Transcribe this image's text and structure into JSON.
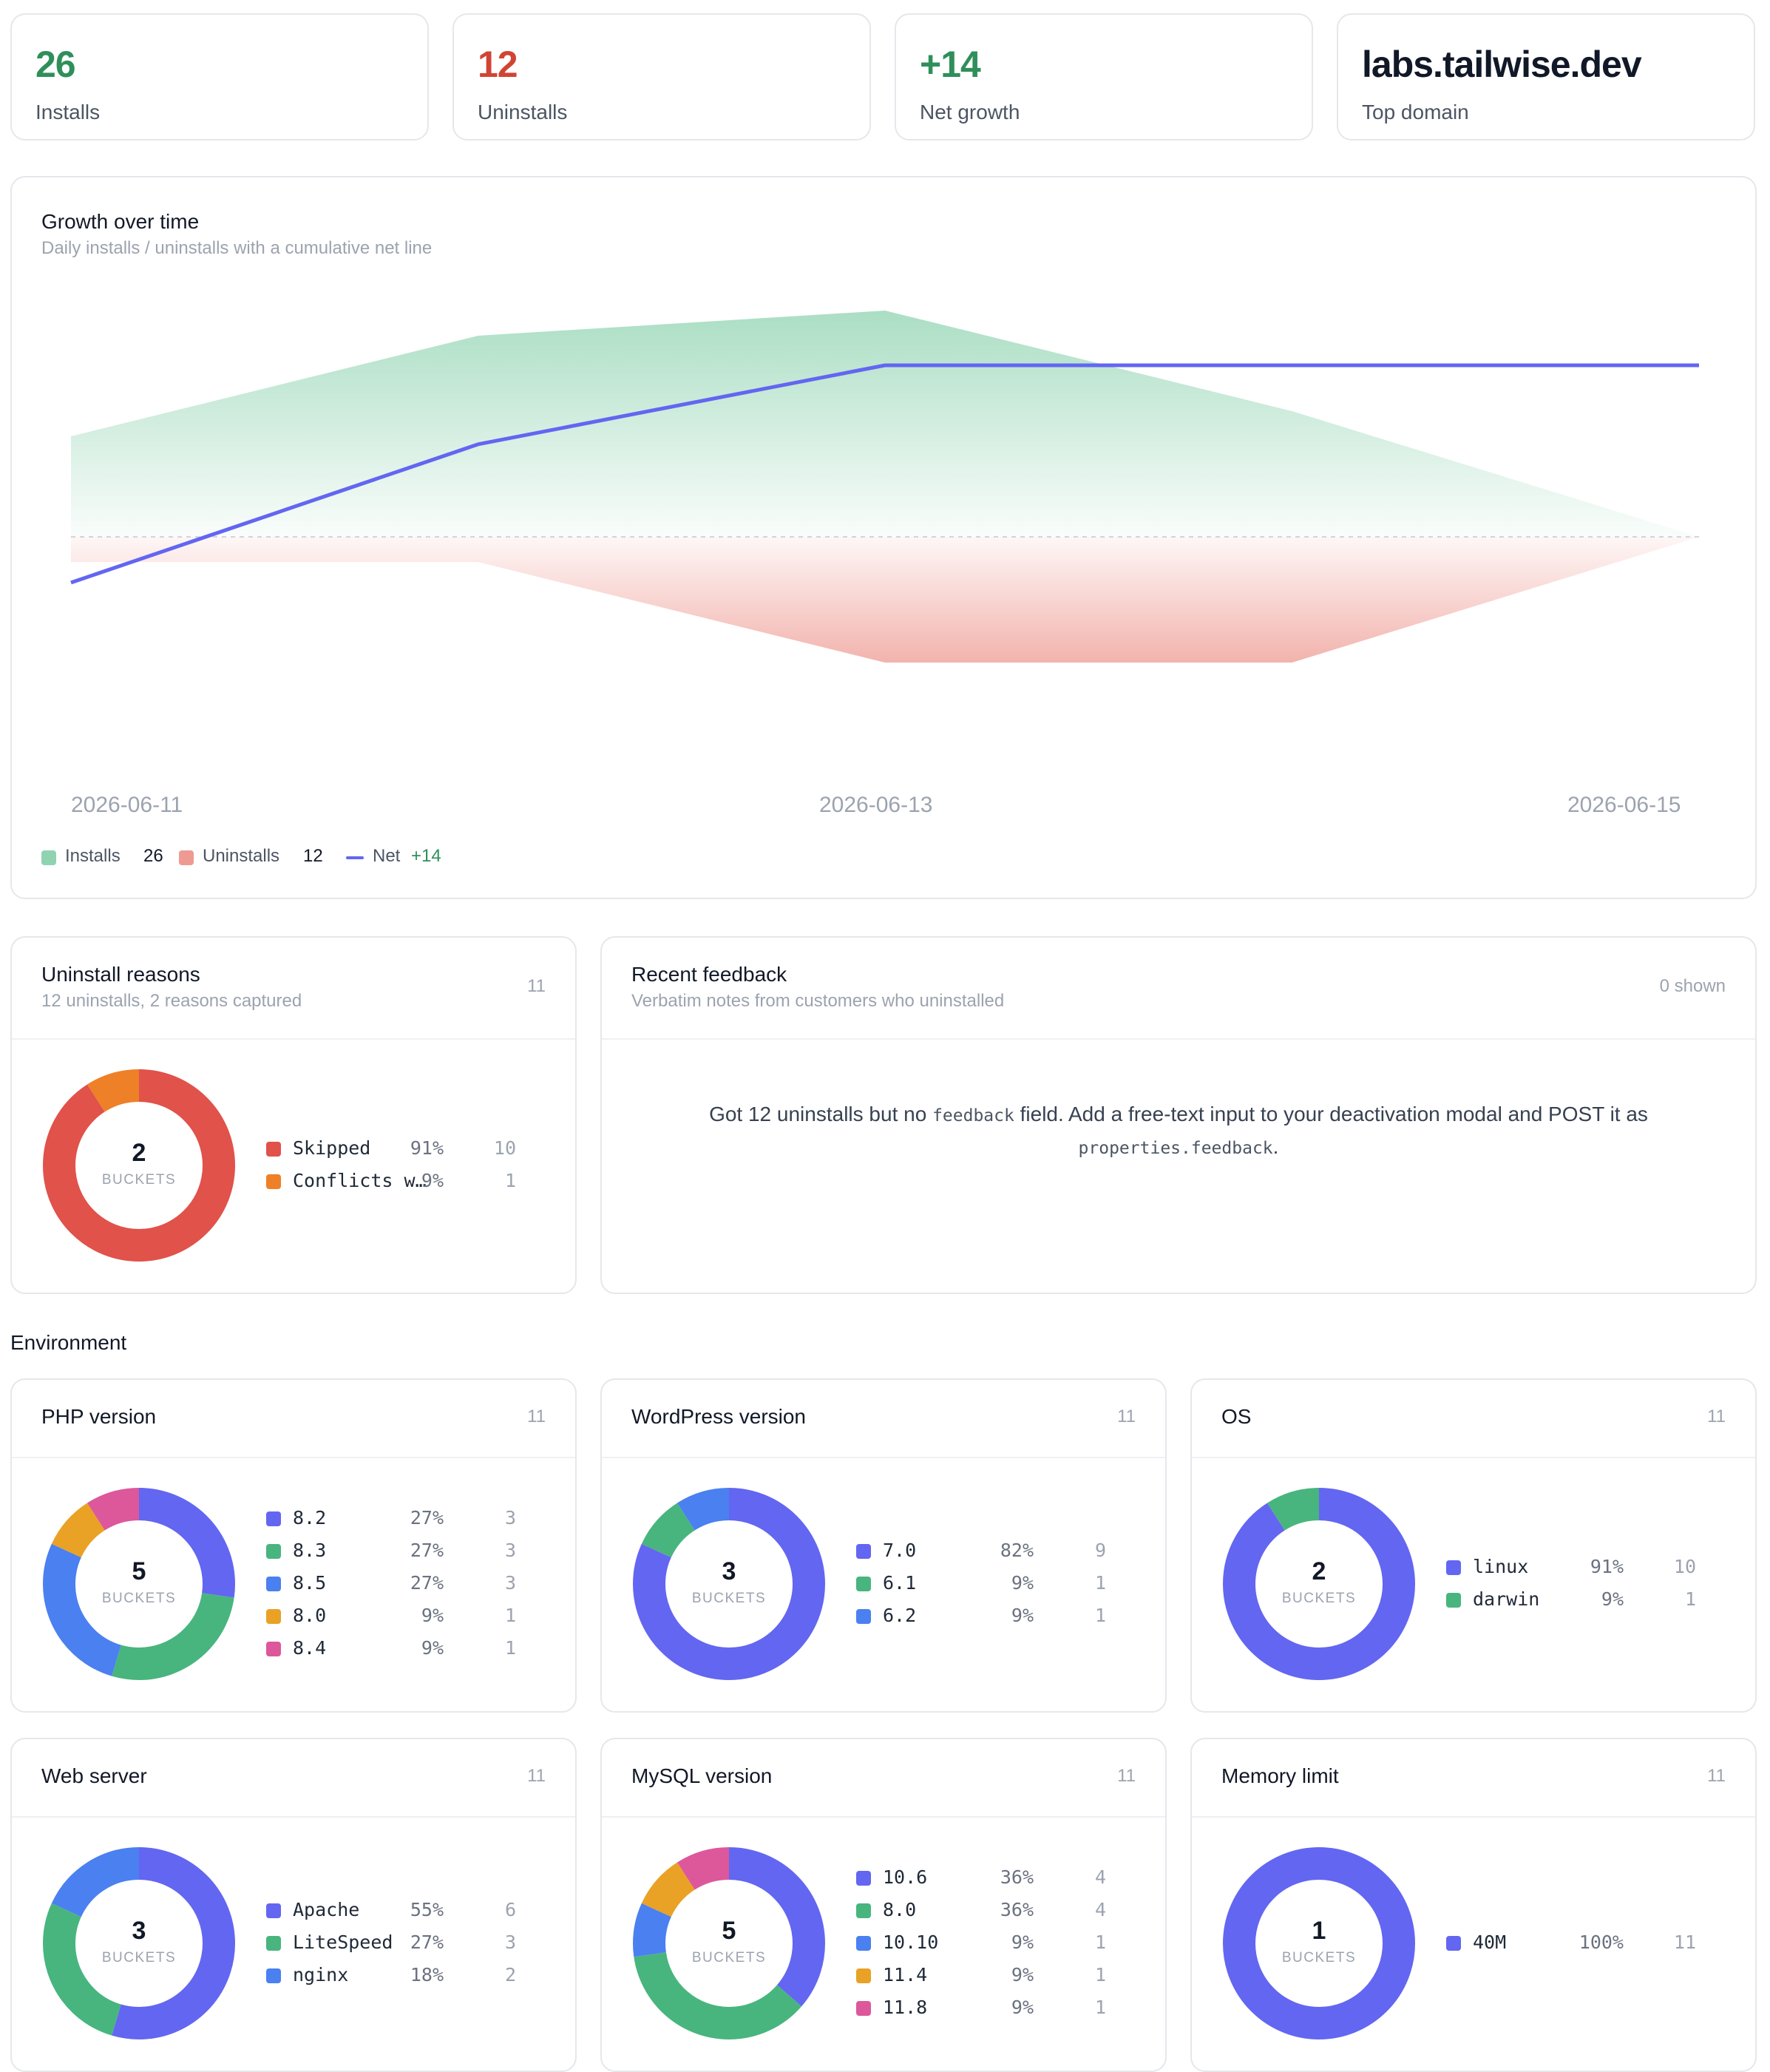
{
  "stats": [
    {
      "value": "26",
      "label": "Installs",
      "color": "#2f8f5b"
    },
    {
      "value": "12",
      "label": "Uninstalls",
      "color": "#d14434"
    },
    {
      "value": "+14",
      "label": "Net growth",
      "color": "#2f8f5b"
    },
    {
      "value": "labs.tailwise.dev",
      "label": "Top domain",
      "color": "#111827"
    }
  ],
  "growth": {
    "title": "Growth over time",
    "subtitle": "Daily installs / uninstalls with a cumulative net line",
    "legend": {
      "installs_label": "Installs",
      "installs_value": "26",
      "uninstalls_label": "Uninstalls",
      "uninstalls_value": "12",
      "net_label": "Net",
      "net_value": "+14"
    }
  },
  "chart_data": {
    "type": "area",
    "x": [
      "2026-06-11",
      "2026-06-12",
      "2026-06-13",
      "2026-06-14",
      "2026-06-15"
    ],
    "x_tick_labels": [
      "2026-06-11",
      "2026-06-13",
      "2026-06-15"
    ],
    "series": [
      {
        "name": "Installs",
        "values": [
          4,
          8,
          9,
          5,
          0
        ],
        "color": "#8fd3b0"
      },
      {
        "name": "Uninstalls",
        "values": [
          1,
          1,
          5,
          5,
          0
        ],
        "color": "#ee9a92"
      },
      {
        "name": "Net",
        "values": [
          3,
          10,
          14,
          14,
          14
        ],
        "color": "#6366f1"
      }
    ],
    "grid": false,
    "legend_position": "bottom-left"
  },
  "uninstall_reasons": {
    "title": "Uninstall reasons",
    "subtitle": "12 uninstalls, 2 reasons captured",
    "count": "11",
    "center_number": "2",
    "center_label": "BUCKETS",
    "items": [
      {
        "label": "Skipped",
        "pct": "91%",
        "count": "10",
        "value": 10,
        "color": "#e0524a"
      },
      {
        "label": "Conflicts with another plugin",
        "pct": "9%",
        "count": "1",
        "value": 1,
        "color": "#ee8027"
      }
    ]
  },
  "feedback": {
    "title": "Recent feedback",
    "subtitle": "Verbatim notes from customers who uninstalled",
    "shown": "0 shown",
    "msg_a": "Got 12 uninstalls but no ",
    "msg_code1": "feedback",
    "msg_b": " field. Add a free-text input to your deactivation modal and POST it as",
    "msg_code2": "properties.feedback",
    "msg_c": "."
  },
  "environment": {
    "heading": "Environment",
    "cards": [
      {
        "title": "PHP version",
        "count": "11",
        "center_number": "5",
        "center_label": "BUCKETS",
        "items": [
          {
            "label": "8.2",
            "pct": "27%",
            "count": "3",
            "value": 3,
            "color": "#6366f1"
          },
          {
            "label": "8.3",
            "pct": "27%",
            "count": "3",
            "value": 3,
            "color": "#48b57e"
          },
          {
            "label": "8.5",
            "pct": "27%",
            "count": "3",
            "value": 3,
            "color": "#4a80f0"
          },
          {
            "label": "8.0",
            "pct": "9%",
            "count": "1",
            "value": 1,
            "color": "#e9a225"
          },
          {
            "label": "8.4",
            "pct": "9%",
            "count": "1",
            "value": 1,
            "color": "#dd579b"
          }
        ]
      },
      {
        "title": "WordPress version",
        "count": "11",
        "center_number": "3",
        "center_label": "BUCKETS",
        "items": [
          {
            "label": "7.0",
            "pct": "82%",
            "count": "9",
            "value": 9,
            "color": "#6366f1"
          },
          {
            "label": "6.1",
            "pct": "9%",
            "count": "1",
            "value": 1,
            "color": "#48b57e"
          },
          {
            "label": "6.2",
            "pct": "9%",
            "count": "1",
            "value": 1,
            "color": "#4a80f0"
          }
        ]
      },
      {
        "title": "OS",
        "count": "11",
        "center_number": "2",
        "center_label": "BUCKETS",
        "items": [
          {
            "label": "linux",
            "pct": "91%",
            "count": "10",
            "value": 10,
            "color": "#6366f1"
          },
          {
            "label": "darwin",
            "pct": "9%",
            "count": "1",
            "value": 1,
            "color": "#48b57e"
          }
        ]
      },
      {
        "title": "Web server",
        "count": "11",
        "center_number": "3",
        "center_label": "BUCKETS",
        "items": [
          {
            "label": "Apache",
            "pct": "55%",
            "count": "6",
            "value": 6,
            "color": "#6366f1"
          },
          {
            "label": "LiteSpeed",
            "pct": "27%",
            "count": "3",
            "value": 3,
            "color": "#48b57e"
          },
          {
            "label": "nginx",
            "pct": "18%",
            "count": "2",
            "value": 2,
            "color": "#4a80f0"
          }
        ]
      },
      {
        "title": "MySQL version",
        "count": "11",
        "center_number": "5",
        "center_label": "BUCKETS",
        "items": [
          {
            "label": "10.6",
            "pct": "36%",
            "count": "4",
            "value": 4,
            "color": "#6366f1"
          },
          {
            "label": "8.0",
            "pct": "36%",
            "count": "4",
            "value": 4,
            "color": "#48b57e"
          },
          {
            "label": "10.10",
            "pct": "9%",
            "count": "1",
            "value": 1,
            "color": "#4a80f0"
          },
          {
            "label": "11.4",
            "pct": "9%",
            "count": "1",
            "value": 1,
            "color": "#e9a225"
          },
          {
            "label": "11.8",
            "pct": "9%",
            "count": "1",
            "value": 1,
            "color": "#dd579b"
          }
        ]
      },
      {
        "title": "Memory limit",
        "count": "11",
        "center_number": "1",
        "center_label": "BUCKETS",
        "items": [
          {
            "label": "40M",
            "pct": "100%",
            "count": "11",
            "value": 11,
            "color": "#6366f1"
          }
        ]
      }
    ]
  }
}
